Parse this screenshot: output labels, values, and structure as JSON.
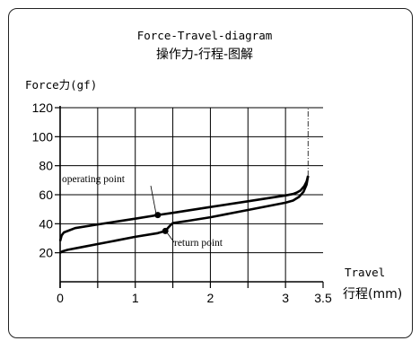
{
  "chart_data": {
    "type": "line",
    "title": "Force-Travel-diagram",
    "subtitle": "操作力-行程-图解",
    "ylabel": "Force力(gf)",
    "xlabel": "Travel",
    "xlabel2": "行程(mm)",
    "xlim": [
      0,
      3.5
    ],
    "ylim": [
      0,
      120
    ],
    "x_ticks": [
      0,
      1,
      2,
      3,
      3.5
    ],
    "x_minor": [
      0.5,
      1.5,
      2.5
    ],
    "y_ticks": [
      20,
      40,
      60,
      80,
      100,
      120
    ],
    "grid": true,
    "series": [
      {
        "name": "operating",
        "x": [
          0,
          0.02,
          0.05,
          0.1,
          0.2,
          0.5,
          1.0,
          1.3,
          1.5,
          2.0,
          2.5,
          3.0,
          3.1,
          3.15,
          3.2,
          3.25,
          3.28,
          3.3
        ],
        "y": [
          28,
          32,
          34,
          35,
          37,
          39.5,
          43.5,
          46,
          47.5,
          51.5,
          55.5,
          59.5,
          60.5,
          61.5,
          63,
          66,
          69,
          73
        ]
      },
      {
        "name": "return",
        "x": [
          0,
          0.03,
          0.1,
          0.3,
          0.6,
          1.0,
          1.3,
          1.4,
          1.45,
          1.5,
          1.7,
          2.0,
          2.5,
          3.0,
          3.1,
          3.18,
          3.24,
          3.28,
          3.3
        ],
        "y": [
          20,
          21,
          22,
          24,
          27,
          31,
          33.5,
          35,
          38,
          40.5,
          42,
          44.5,
          49.5,
          54.5,
          56,
          58.5,
          62,
          67,
          73
        ]
      }
    ],
    "vertical_dashdot": {
      "x": 3.3,
      "y_from": 73,
      "y_to": 120
    },
    "points": [
      {
        "label": "operating point",
        "x": 1.3,
        "y": 46
      },
      {
        "label": "return point",
        "x": 1.4,
        "y": 35
      }
    ]
  }
}
